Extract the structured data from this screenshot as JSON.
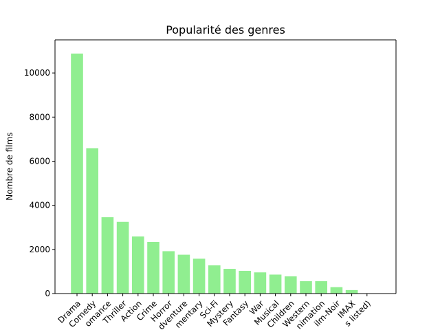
{
  "chart_data": {
    "type": "bar",
    "title": "Popularité des genres",
    "xlabel": "",
    "ylabel": "Nombre de films",
    "ylim": [
      0,
      11500
    ],
    "yticks": [
      0,
      2000,
      4000,
      6000,
      8000,
      10000
    ],
    "ytick_labels": [
      "0",
      "2000",
      "4000",
      "6000",
      "8000",
      "10000"
    ],
    "bar_color": "#90ee90",
    "grid": false,
    "tick_rotation_deg": 45,
    "categories": [
      "Drama",
      "Comedy",
      "Romance",
      "Thriller",
      "Action",
      "Crime",
      "Horror",
      "Adventure",
      "Documentary",
      "Sci-Fi",
      "Mystery",
      "Fantasy",
      "War",
      "Musical",
      "Children",
      "Western",
      "Animation",
      "Film-Noir",
      "IMAX",
      "(no genres listed)"
    ],
    "visible_tick_labels": [
      "Drama",
      "Comedy",
      "omance",
      "Thriller",
      "Action",
      "Crime",
      "Horror",
      "dventure",
      "mentary",
      "Sci-Fi",
      "Mystery",
      "Fantasy",
      "War",
      "Musical",
      "Children",
      "Western",
      "nimation",
      "ilm-Noir",
      "IMAX",
      "s listed)"
    ],
    "values": [
      10880,
      6590,
      3460,
      3250,
      2590,
      2340,
      1920,
      1760,
      1580,
      1280,
      1120,
      1030,
      960,
      860,
      780,
      560,
      560,
      290,
      160,
      0
    ]
  }
}
